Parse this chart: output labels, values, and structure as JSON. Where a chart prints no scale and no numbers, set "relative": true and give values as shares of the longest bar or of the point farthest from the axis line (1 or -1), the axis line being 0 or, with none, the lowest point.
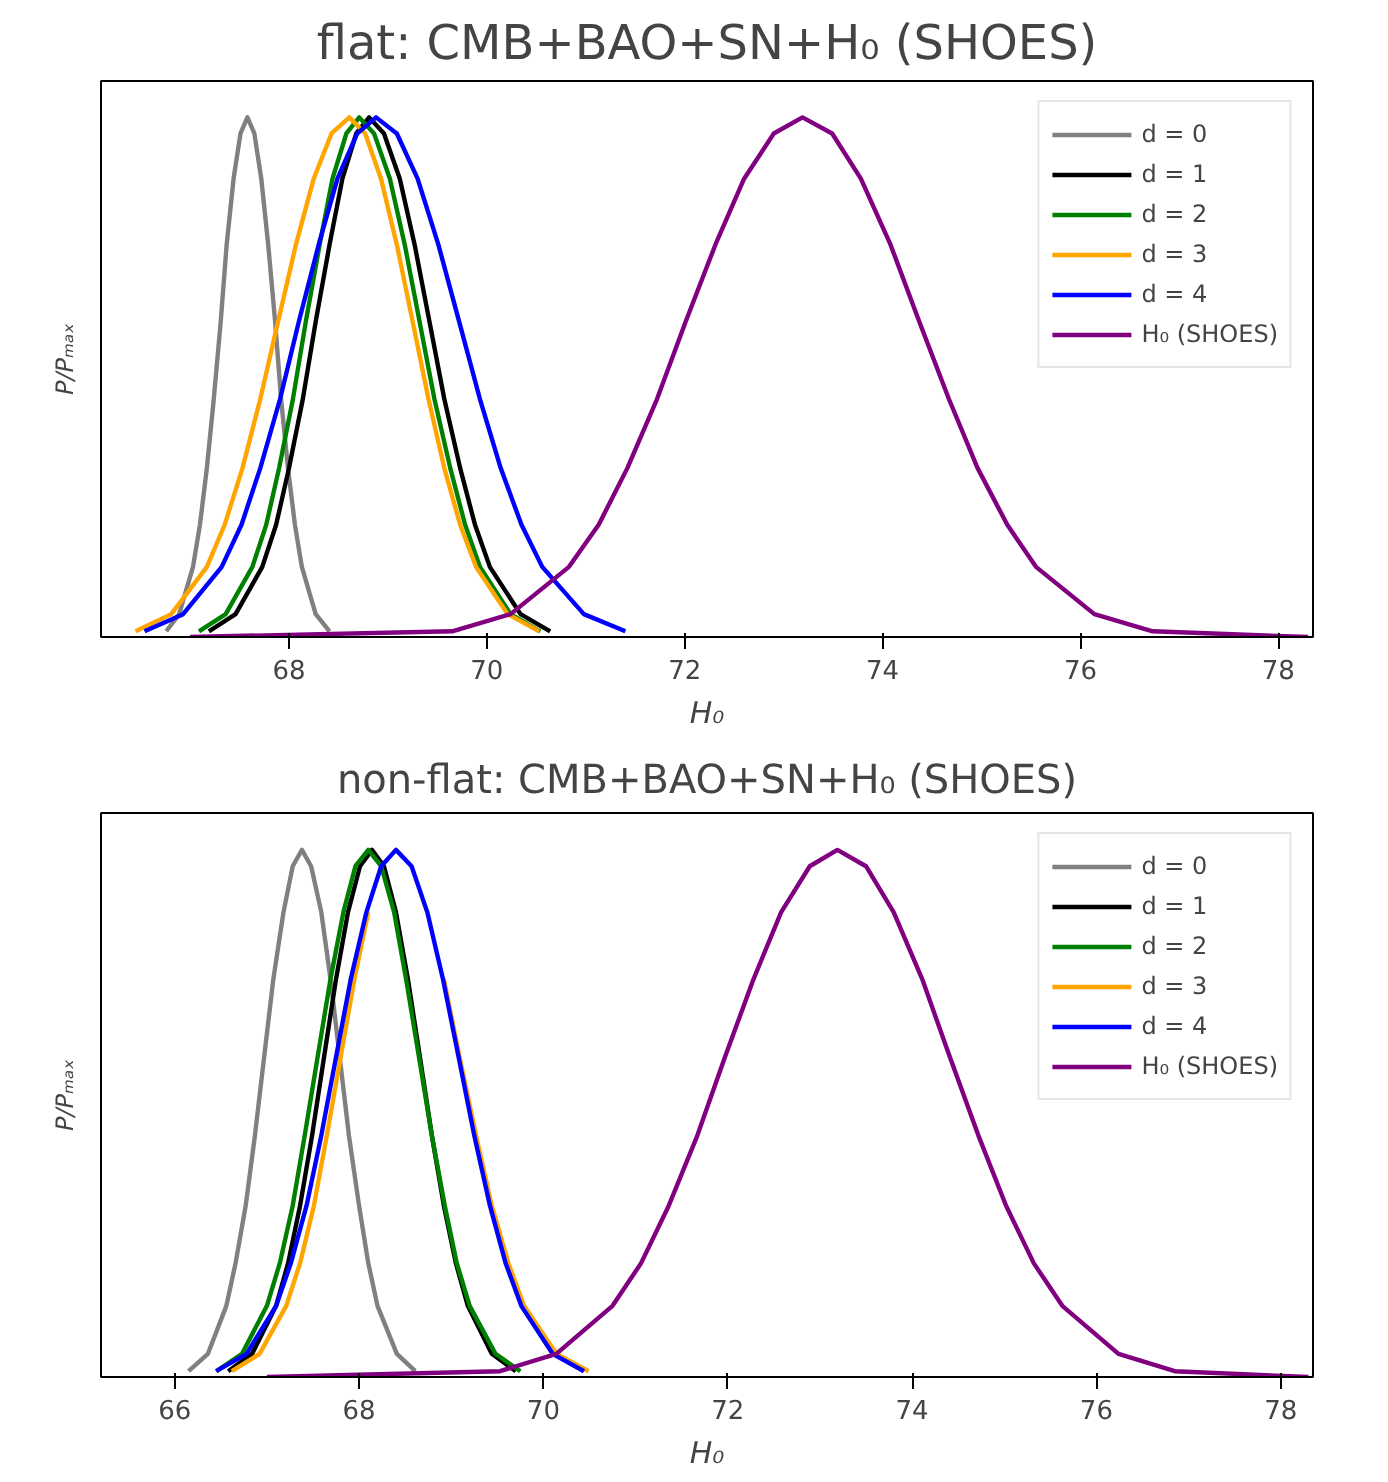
{
  "chart_data": [
    {
      "type": "line",
      "title": "flat: CMB+BAO+SN+H₀ (SHOES)",
      "xlabel": "H₀",
      "ylabel": "P/Pₘₐₓ",
      "relative": true,
      "xlim": [
        66.1,
        78.35
      ],
      "xticks": [
        68,
        70,
        72,
        74,
        76,
        78
      ],
      "tick_labels": "x",
      "grid": false,
      "legend": "top right",
      "line_style": "solid",
      "marker": "none",
      "series": [
        {
          "name": "d = 0",
          "color": "#808080",
          "x": [
            66.76,
            66.89,
            67.03,
            67.1,
            67.17,
            67.24,
            67.31,
            67.37,
            67.44,
            67.51,
            67.58,
            67.65,
            67.72,
            67.79,
            67.86,
            67.92,
            67.99,
            68.06,
            68.13,
            68.27,
            68.41
          ],
          "values": [
            0.011,
            0.044,
            0.135,
            0.216,
            0.325,
            0.458,
            0.607,
            0.755,
            0.882,
            0.969,
            1,
            0.969,
            0.882,
            0.755,
            0.607,
            0.458,
            0.325,
            0.216,
            0.135,
            0.044,
            0.011
          ]
        },
        {
          "name": "d = 1",
          "color": "#000000",
          "x": [
            67.19,
            67.46,
            67.73,
            67.87,
            68.0,
            68.14,
            68.27,
            68.41,
            68.54,
            68.68,
            68.81,
            68.96,
            69.12,
            69.27,
            69.42,
            69.57,
            69.73,
            69.88,
            70.03,
            70.34,
            70.64
          ],
          "values": [
            0.011,
            0.044,
            0.135,
            0.216,
            0.325,
            0.458,
            0.607,
            0.755,
            0.882,
            0.969,
            1,
            0.969,
            0.882,
            0.755,
            0.607,
            0.458,
            0.325,
            0.216,
            0.135,
            0.044,
            0.011
          ]
        },
        {
          "name": "d = 2",
          "color": "#008000",
          "x": [
            67.09,
            67.36,
            67.63,
            67.77,
            67.9,
            68.04,
            68.17,
            68.31,
            68.44,
            68.58,
            68.71,
            68.86,
            69.02,
            69.17,
            69.32,
            69.47,
            69.63,
            69.78,
            69.93,
            70.24,
            70.54
          ],
          "values": [
            0.011,
            0.044,
            0.135,
            0.216,
            0.325,
            0.458,
            0.607,
            0.755,
            0.882,
            0.969,
            1,
            0.969,
            0.882,
            0.755,
            0.607,
            0.458,
            0.325,
            0.216,
            0.135,
            0.044,
            0.011
          ]
        },
        {
          "name": "d = 3",
          "color": "#ffa500",
          "x": [
            66.45,
            66.81,
            67.17,
            67.35,
            67.53,
            67.71,
            67.89,
            68.07,
            68.25,
            68.43,
            68.61,
            68.77,
            68.93,
            69.09,
            69.25,
            69.41,
            69.57,
            69.73,
            69.89,
            70.21,
            70.53
          ],
          "values": [
            0.011,
            0.044,
            0.135,
            0.216,
            0.325,
            0.458,
            0.607,
            0.755,
            0.882,
            0.969,
            1,
            0.969,
            0.882,
            0.755,
            0.607,
            0.458,
            0.325,
            0.216,
            0.135,
            0.044,
            0.011
          ]
        },
        {
          "name": "d = 4",
          "color": "#0000ff",
          "x": [
            66.54,
            66.93,
            67.32,
            67.52,
            67.71,
            67.91,
            68.1,
            68.3,
            68.49,
            68.69,
            68.88,
            69.09,
            69.3,
            69.51,
            69.72,
            69.93,
            70.14,
            70.35,
            70.56,
            70.98,
            71.4
          ],
          "values": [
            0.011,
            0.044,
            0.135,
            0.216,
            0.325,
            0.458,
            0.607,
            0.755,
            0.882,
            0.969,
            1,
            0.969,
            0.882,
            0.755,
            0.607,
            0.458,
            0.325,
            0.216,
            0.135,
            0.044,
            0.011
          ]
        },
        {
          "name": "H₀ (SHOES)",
          "color": "#800080",
          "x": [
            67.0,
            69.65,
            70.24,
            70.83,
            71.13,
            71.42,
            71.72,
            72.01,
            72.31,
            72.6,
            72.9,
            73.19,
            73.49,
            73.78,
            74.08,
            74.37,
            74.67,
            74.96,
            75.26,
            75.55,
            76.14,
            76.73,
            78.3
          ],
          "values": [
            0,
            0.011,
            0.044,
            0.135,
            0.216,
            0.325,
            0.458,
            0.607,
            0.755,
            0.882,
            0.969,
            1,
            0.969,
            0.882,
            0.755,
            0.607,
            0.458,
            0.325,
            0.216,
            0.135,
            0.044,
            0.011,
            0
          ]
        }
      ]
    },
    {
      "type": "line",
      "title": "non-flat: CMB+BAO+SN+H₀ (SHOES)",
      "xlabel": "H₀",
      "ylabel": "P/Pₘₐₓ",
      "relative": true,
      "xlim": [
        65.2,
        78.35
      ],
      "xticks": [
        66,
        68,
        70,
        72,
        74,
        76,
        78
      ],
      "tick_labels": "x",
      "grid": false,
      "legend": "top right",
      "line_style": "solid",
      "marker": "none",
      "series": [
        {
          "name": "d = 0",
          "color": "#808080",
          "x": [
            66.15,
            66.36,
            66.56,
            66.66,
            66.77,
            66.87,
            66.97,
            67.07,
            67.18,
            67.28,
            67.38,
            67.48,
            67.59,
            67.69,
            67.79,
            67.89,
            68.0,
            68.1,
            68.2,
            68.41,
            68.61
          ],
          "values": [
            0.011,
            0.044,
            0.135,
            0.216,
            0.325,
            0.458,
            0.607,
            0.755,
            0.882,
            0.969,
            1,
            0.969,
            0.882,
            0.755,
            0.607,
            0.458,
            0.325,
            0.216,
            0.135,
            0.044,
            0.011
          ]
        },
        {
          "name": "d = 1",
          "color": "#000000",
          "x": [
            66.58,
            66.84,
            67.1,
            67.23,
            67.36,
            67.49,
            67.62,
            67.75,
            67.88,
            68.01,
            68.14,
            68.27,
            68.4,
            68.53,
            68.66,
            68.79,
            68.92,
            69.05,
            69.18,
            69.44,
            69.7
          ],
          "values": [
            0.011,
            0.044,
            0.135,
            0.216,
            0.325,
            0.458,
            0.607,
            0.755,
            0.882,
            0.969,
            1,
            0.969,
            0.882,
            0.755,
            0.607,
            0.458,
            0.325,
            0.216,
            0.135,
            0.044,
            0.011
          ]
        },
        {
          "name": "d = 2",
          "color": "#008000",
          "x": [
            66.45,
            66.73,
            67.0,
            67.14,
            67.28,
            67.41,
            67.55,
            67.69,
            67.83,
            67.96,
            68.1,
            68.24,
            68.38,
            68.51,
            68.65,
            68.79,
            68.93,
            69.06,
            69.2,
            69.48,
            69.75
          ],
          "values": [
            0.011,
            0.044,
            0.135,
            0.216,
            0.325,
            0.458,
            0.607,
            0.755,
            0.882,
            0.969,
            1,
            0.969,
            0.882,
            0.755,
            0.607,
            0.458,
            0.325,
            0.216,
            0.135,
            0.044,
            0.011
          ]
        },
        {
          "name": "d = 3",
          "color": "#ffa500",
          "x": [
            66.62,
            66.92,
            67.21,
            67.36,
            67.51,
            67.65,
            67.8,
            67.95,
            68.1,
            68.24,
            68.39,
            68.57,
            68.74,
            68.92,
            69.09,
            69.27,
            69.44,
            69.62,
            69.79,
            70.14,
            70.49
          ],
          "values": [
            0.011,
            0.044,
            0.135,
            0.216,
            0.325,
            0.458,
            0.607,
            0.755,
            0.882,
            null,
            null,
            null,
            null,
            0.755,
            0.607,
            0.458,
            0.325,
            0.216,
            0.135,
            0.044,
            0.011
          ]
        },
        {
          "name": "d = 4",
          "color": "#0000ff",
          "x": [
            66.45,
            66.78,
            67.1,
            67.26,
            67.43,
            67.59,
            67.75,
            67.91,
            68.08,
            68.24,
            68.4,
            68.57,
            68.74,
            68.91,
            69.08,
            69.25,
            69.42,
            69.59,
            69.76,
            70.1,
            70.44
          ],
          "values": [
            0.011,
            0.044,
            0.135,
            0.216,
            0.325,
            0.458,
            0.607,
            0.755,
            0.882,
            0.969,
            1,
            0.969,
            0.882,
            0.755,
            0.607,
            0.458,
            0.325,
            0.216,
            0.135,
            0.044,
            0.011
          ]
        },
        {
          "name": "H₀ (SHOES)",
          "color": "#800080",
          "x": [
            67.0,
            69.53,
            70.14,
            70.75,
            71.06,
            71.36,
            71.67,
            71.97,
            72.28,
            72.58,
            72.89,
            73.19,
            73.5,
            73.8,
            74.11,
            74.41,
            74.72,
            75.02,
            75.32,
            75.63,
            76.24,
            76.85,
            78.3
          ],
          "values": [
            0,
            0.011,
            0.044,
            0.135,
            0.216,
            0.325,
            0.458,
            0.607,
            0.755,
            0.882,
            0.969,
            1,
            0.969,
            0.882,
            0.755,
            0.607,
            0.458,
            0.325,
            0.216,
            0.135,
            0.044,
            0.011,
            0
          ]
        }
      ]
    }
  ]
}
